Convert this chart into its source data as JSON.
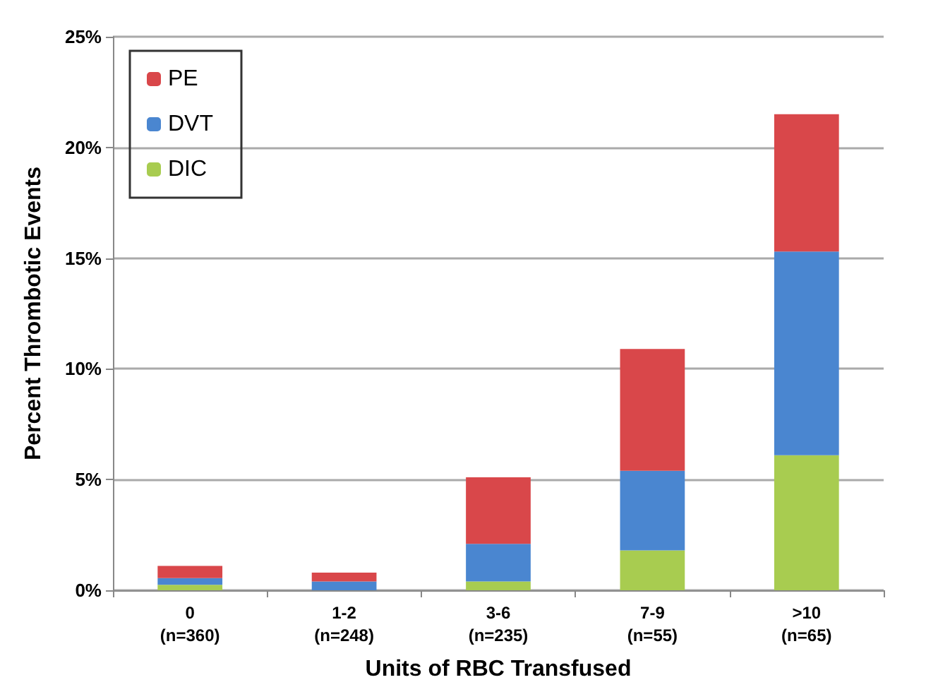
{
  "chart_data": {
    "type": "bar",
    "stacked": true,
    "xlabel": "Units of RBC Transfused",
    "ylabel": "Percent Thrombotic Events",
    "categories": [
      "0\n(n=360)",
      "1-2\n(n=248)",
      "3-6\n(n=235)",
      "7-9\n(n=55)",
      ">10\n(n=65)"
    ],
    "series": [
      {
        "name": "DIC",
        "color": "#a8cc50",
        "values": [
          0.25,
          0,
          0.4,
          1.8,
          6.1
        ]
      },
      {
        "name": "DVT",
        "color": "#4a86d0",
        "values": [
          0.3,
          0.4,
          1.7,
          3.6,
          9.2
        ]
      },
      {
        "name": "PE",
        "color": "#d9474a",
        "values": [
          0.55,
          0.4,
          3.0,
          5.5,
          6.2
        ]
      }
    ],
    "ylim": [
      0,
      25
    ],
    "yticks": [
      {
        "value": 0,
        "label": "0%"
      },
      {
        "value": 5,
        "label": "5%"
      },
      {
        "value": 10,
        "label": "10%"
      },
      {
        "value": 15,
        "label": "15%"
      },
      {
        "value": 20,
        "label": "20%"
      },
      {
        "value": 25,
        "label": "25%"
      }
    ],
    "grid": "y",
    "legend": "top left"
  }
}
